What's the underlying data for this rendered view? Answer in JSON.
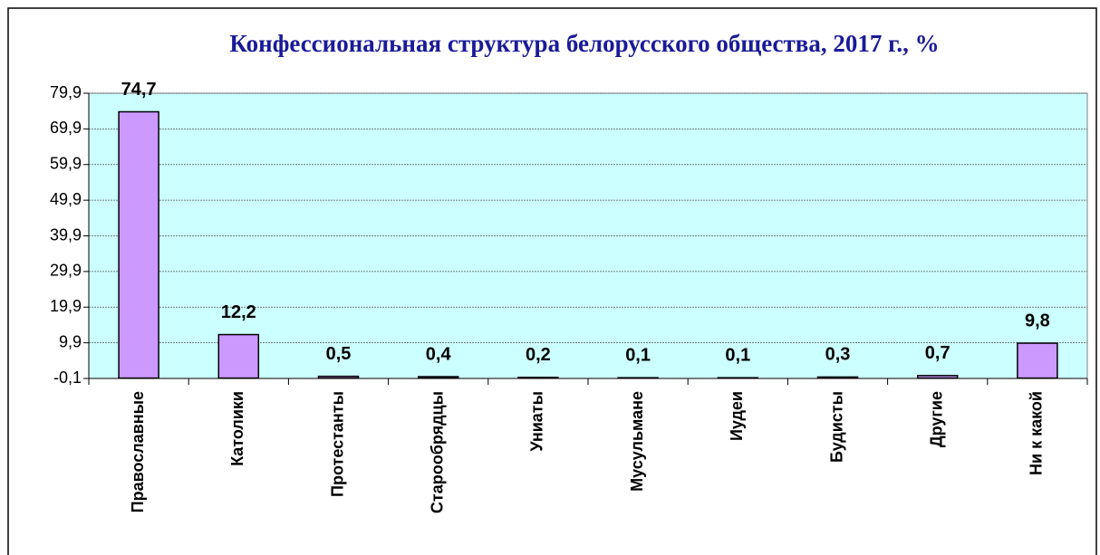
{
  "chart_data": {
    "type": "bar",
    "title": "Конфессиональная структура белорусского общества, 2017 г., %",
    "categories": [
      "Православные",
      "Католики",
      "Протестанты",
      "Старообрядцы",
      "Униаты",
      "Мусульмане",
      "Иудеи",
      "Будисты",
      "Другие",
      "Ни к какой"
    ],
    "values": [
      74.7,
      12.2,
      0.5,
      0.4,
      0.2,
      0.1,
      0.1,
      0.3,
      0.7,
      9.8
    ],
    "value_labels": [
      "74,7",
      "12,2",
      "0,5",
      "0,4",
      "0,2",
      "0,1",
      "0,1",
      "0,3",
      "0,7",
      "9,8"
    ],
    "color": "#cc99ff",
    "ylim": [
      -0.1,
      79.9
    ],
    "yticks": [
      {
        "value": -0.1,
        "label": "-0,1"
      },
      {
        "value": 9.9,
        "label": "9,9"
      },
      {
        "value": 19.9,
        "label": "19,9"
      },
      {
        "value": 29.9,
        "label": "29,9"
      },
      {
        "value": 39.9,
        "label": "39,9"
      },
      {
        "value": 49.9,
        "label": "49,9"
      },
      {
        "value": 59.9,
        "label": "59,9"
      },
      {
        "value": 69.9,
        "label": "69,9"
      },
      {
        "value": 79.9,
        "label": "79,9"
      }
    ],
    "grid": true
  }
}
